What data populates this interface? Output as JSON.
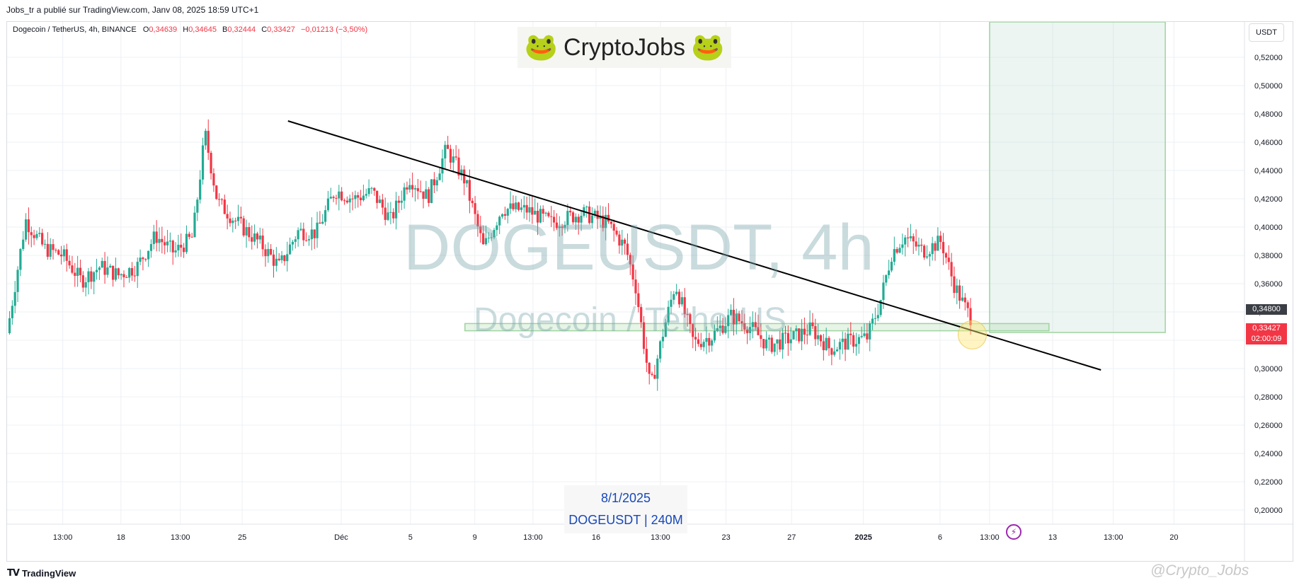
{
  "published": "Jobs_tr a publié sur TradingView.com, Janv 08, 2025 18:59 UTC+1",
  "legend": {
    "symbol": "Dogecoin / TetherUS, 4h, BINANCE",
    "o_label": "O",
    "o_val": "0,34639",
    "h_label": "H",
    "h_val": "0,34645",
    "b_label": "B",
    "b_val": "0,32444",
    "c_label": "C",
    "c_val": "0,33427",
    "change": "−0,01213 (−3,50%)"
  },
  "currency": "USDT",
  "brand": {
    "name": "CryptoJobs",
    "icon": "frog-icon"
  },
  "watermark": {
    "main": "DOGEUSDT, 4h",
    "sub": "Dogecoin / TetherUS"
  },
  "date_box": {
    "date": "8/1/2025",
    "symbol": "DOGEUSDT | 240M"
  },
  "tv_logo": {
    "mark": "𝗧𝗩",
    "text": "TradingView"
  },
  "credit": "@Crypto_Jobs",
  "price_tags": {
    "level": "0,34800",
    "last": "0,33427",
    "countdown": "02:00:09"
  },
  "colors": {
    "up": "#22ab94",
    "down": "#f23645",
    "trendline": "#000000",
    "zone": "#9fd49f"
  },
  "chart_data": {
    "type": "candlestick",
    "symbol": "DOGEUSDT",
    "interval": "4h",
    "y_axis": {
      "range": [
        0.19,
        0.545
      ],
      "ticks": [
        0.2,
        0.22,
        0.24,
        0.26,
        0.28,
        0.3,
        0.32,
        0.34,
        0.36,
        0.38,
        0.4,
        0.42,
        0.44,
        0.46,
        0.48,
        0.5,
        0.52
      ],
      "tick_labels": [
        "0,20000",
        "0,22000",
        "0,24000",
        "0,26000",
        "0,28000",
        "0,30000",
        "0,32000",
        "0,34000",
        "0,36000",
        "0,38000",
        "0,40000",
        "0,42000",
        "0,44000",
        "0,46000",
        "0,48000",
        "0,50000",
        "0,52000"
      ]
    },
    "x_axis": {
      "range": [
        0,
        100
      ],
      "ticks": [
        4.5,
        9.2,
        14.0,
        19.0,
        27.0,
        32.6,
        37.8,
        42.5,
        47.6,
        52.8,
        58.1,
        63.4,
        69.2,
        75.4,
        79.4,
        84.5,
        89.4,
        94.3
      ],
      "tick_labels": [
        "13:00",
        "18",
        "13:00",
        "25",
        "Déc",
        "5",
        "9",
        "13:00",
        "16",
        "13:00",
        "23",
        "27",
        "2025",
        "6",
        "13:00",
        "13",
        "13:00",
        "20"
      ]
    },
    "grid": true,
    "trendline": [
      {
        "x": 22.7,
        "y": 0.475
      },
      {
        "x": 88.4,
        "y": 0.299
      }
    ],
    "support_zone": {
      "x_start": 37.0,
      "x_end": 84.2,
      "y_low": 0.3267,
      "y_high": 0.3318
    },
    "target_zone": {
      "x_start": 79.4,
      "x_end": 93.6,
      "y_low": 0.3255,
      "y_high": 0.545
    },
    "highlight_circle": {
      "x": 78.0,
      "y": 0.3238
    },
    "price_markers": [
      {
        "label": "0,34800",
        "y": 0.348
      },
      {
        "label": "0,33427",
        "y": 0.33427
      }
    ],
    "close_path": [
      [
        0,
        0.325
      ],
      [
        1.5,
        0.405
      ],
      [
        3,
        0.385
      ],
      [
        4.5,
        0.38
      ],
      [
        6,
        0.362
      ],
      [
        7.5,
        0.372
      ],
      [
        9,
        0.366
      ],
      [
        10.5,
        0.372
      ],
      [
        12,
        0.394
      ],
      [
        13.5,
        0.382
      ],
      [
        15,
        0.393
      ],
      [
        16,
        0.466
      ],
      [
        17,
        0.418
      ],
      [
        18.5,
        0.404
      ],
      [
        20.5,
        0.388
      ],
      [
        22,
        0.372
      ],
      [
        23.5,
        0.397
      ],
      [
        25,
        0.396
      ],
      [
        26.5,
        0.426
      ],
      [
        28,
        0.42
      ],
      [
        29.5,
        0.425
      ],
      [
        31,
        0.405
      ],
      [
        32.5,
        0.435
      ],
      [
        34,
        0.421
      ],
      [
        35.5,
        0.455
      ],
      [
        37,
        0.433
      ],
      [
        38.5,
        0.385
      ],
      [
        40,
        0.413
      ],
      [
        42,
        0.412
      ],
      [
        44,
        0.403
      ],
      [
        46.5,
        0.41
      ],
      [
        48.5,
        0.403
      ],
      [
        50,
        0.385
      ],
      [
        50.8,
        0.358
      ],
      [
        52,
        0.285
      ],
      [
        53,
        0.325
      ],
      [
        54,
        0.36
      ],
      [
        55.5,
        0.318
      ],
      [
        57,
        0.323
      ],
      [
        58.5,
        0.337
      ],
      [
        60,
        0.33
      ],
      [
        61.5,
        0.316
      ],
      [
        63.5,
        0.322
      ],
      [
        65,
        0.328
      ],
      [
        66.5,
        0.314
      ],
      [
        68,
        0.319
      ],
      [
        69.5,
        0.322
      ],
      [
        70.5,
        0.345
      ],
      [
        71.5,
        0.382
      ],
      [
        72.5,
        0.393
      ],
      [
        74,
        0.383
      ],
      [
        75.5,
        0.39
      ],
      [
        76.5,
        0.36
      ],
      [
        77.3,
        0.345
      ],
      [
        78,
        0.33427
      ]
    ]
  }
}
